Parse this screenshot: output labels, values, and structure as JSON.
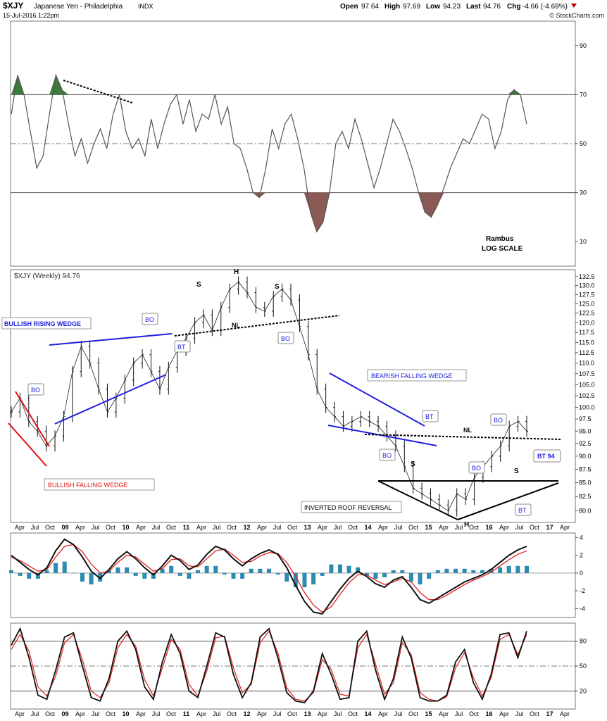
{
  "header": {
    "symbol": "$XJY",
    "name": "Japanese Yen - Philadelphia",
    "exchange": "INDX",
    "date": "15-Jul-2016 1:22pm",
    "stats_open_label": "Open",
    "stats_open": "97.64",
    "stats_high_label": "High",
    "stats_high": "97.69",
    "stats_low_label": "Low",
    "stats_low": "94.23",
    "stats_last_label": "Last",
    "stats_last": "94.76",
    "stats_chg_label": "Chg",
    "stats_chg": "-4.66 (-4.69%)",
    "watermark": "© StockCharts.com"
  },
  "chart_data": [
    {
      "type": "line",
      "panel": "rsi-top",
      "yticks": [
        90,
        70,
        50,
        30,
        10
      ],
      "ylim": [
        0,
        100
      ],
      "overbought": 70,
      "oversold": 30,
      "annotations": [
        "Rambus",
        "LOG SCALE"
      ],
      "series": [
        {
          "values": [
            62,
            78,
            70,
            55,
            40,
            45,
            62,
            78,
            72,
            58,
            45,
            52,
            42,
            50,
            56,
            48,
            62,
            70,
            55,
            48,
            52,
            45,
            60,
            48,
            58,
            66,
            70,
            58,
            68,
            55,
            62,
            60,
            70,
            58,
            65,
            50,
            48,
            40,
            30,
            28,
            40,
            56,
            48,
            58,
            62,
            52,
            40,
            22,
            14,
            18,
            30,
            50,
            55,
            48,
            60,
            52,
            42,
            32,
            40,
            50,
            60,
            55,
            48,
            40,
            30,
            22,
            20,
            25,
            32,
            40,
            46,
            52,
            50,
            56,
            62,
            60,
            48,
            55,
            68,
            72,
            70,
            58
          ]
        }
      ]
    },
    {
      "type": "line",
      "panel": "price",
      "title": "$XJY (Weekly) 94.76",
      "yscale": "log",
      "ylim": [
        78.5,
        133.5
      ],
      "yticks": [
        "132.5",
        "130.0",
        "127.5",
        "125.0",
        "122.5",
        "120.0",
        "117.5",
        "115.0",
        "112.5",
        "110.0",
        "107.5",
        "105.0",
        "102.5",
        "100.0",
        "97.5",
        "95.0",
        "92.5",
        "90.0",
        "87.5",
        "85.0",
        "82.5",
        "80.0"
      ],
      "x_labels": [
        "Apr",
        "Jul",
        "Oct",
        "09",
        "Apr",
        "Jul",
        "Oct",
        "10",
        "Apr",
        "Jul",
        "Oct",
        "11",
        "Apr",
        "Jul",
        "Oct",
        "12",
        "Apr",
        "Jul",
        "Oct",
        "13",
        "Apr",
        "Jul",
        "Oct",
        "14",
        "Apr",
        "Jul",
        "Oct",
        "15",
        "Apr",
        "Jul",
        "Oct",
        "16",
        "Apr",
        "Jul",
        "Oct",
        "17",
        "Apr"
      ],
      "series": [
        {
          "name": "$XJY",
          "values": [
            99,
            102,
            97,
            95,
            92,
            94,
            98,
            108,
            114,
            110,
            104,
            99,
            102,
            106,
            110,
            112,
            108,
            104,
            109,
            113,
            116,
            120,
            122,
            118,
            124,
            129,
            131,
            128,
            124,
            123,
            127,
            129,
            126,
            119,
            112,
            104,
            100,
            98,
            96,
            97,
            98,
            97,
            96,
            94,
            92,
            88,
            84,
            83,
            82,
            81,
            80,
            83,
            82,
            86,
            88,
            90,
            92,
            96,
            97,
            95
          ]
        }
      ],
      "annotations": {
        "pattern_labels": [
          "BULLISH RISING WEDGE",
          "BULLISH FALLING WEDGE",
          "BEARISH FALLING WEDGE",
          "INVERTED ROOF REVERSAL"
        ],
        "callouts": [
          "BO",
          "BO",
          "BT",
          "BO",
          "BO",
          "BT",
          "BO",
          "BO",
          "BT",
          "BT 94"
        ],
        "marks": [
          "S",
          "H",
          "S",
          "NL",
          "S",
          "H",
          "S",
          "NL"
        ]
      }
    },
    {
      "type": "line",
      "panel": "macd",
      "yticks": [
        4,
        2,
        0,
        -2,
        -4
      ],
      "ylim": [
        -5,
        4.5
      ],
      "series": [
        {
          "values": [
            2,
            1.2,
            0.4,
            -0.2,
            0.6,
            2.5,
            3.8,
            3.2,
            1.8,
            0.2,
            -0.6,
            0.4,
            1.6,
            2.4,
            1.6,
            0.6,
            -0.2,
            0.8,
            2,
            1.4,
            0.4,
            0.9,
            2.1,
            3,
            2.6,
            1.6,
            0.8,
            1.6,
            2.2,
            2.6,
            2.1,
            0.6,
            -1.4,
            -3.2,
            -4.4,
            -4.6,
            -3.2,
            -1.8,
            -0.6,
            0.2,
            -0.4,
            -1.2,
            -1.6,
            -0.8,
            -0.4,
            -1.6,
            -3,
            -3.4,
            -2.8,
            -2.2,
            -1.6,
            -1,
            -0.6,
            -0.2,
            0.4,
            1.2,
            2,
            2.6,
            3
          ]
        },
        {
          "values": [
            1.8,
            1.4,
            0.8,
            0.2,
            0.4,
            1.8,
            3,
            3.2,
            2.4,
            1,
            0,
            0.2,
            1.2,
            2,
            1.8,
            1,
            0.2,
            0.5,
            1.5,
            1.6,
            0.8,
            0.7,
            1.6,
            2.5,
            2.7,
            2,
            1.2,
            1.3,
            1.9,
            2.3,
            2.2,
            1.2,
            -0.4,
            -2.2,
            -3.6,
            -4.4,
            -3.8,
            -2.4,
            -1.1,
            -0.2,
            -0.2,
            -0.8,
            -1.3,
            -1,
            -0.6,
            -1,
            -2.2,
            -3,
            -3,
            -2.5,
            -1.9,
            -1.3,
            -0.8,
            -0.4,
            0.1,
            0.8,
            1.5,
            2.1,
            2.5
          ]
        }
      ]
    },
    {
      "type": "line",
      "panel": "stochastic",
      "yticks": [
        80,
        50,
        20
      ],
      "ylim": [
        0,
        100
      ],
      "series": [
        {
          "values": [
            75,
            95,
            60,
            15,
            10,
            45,
            85,
            90,
            50,
            12,
            8,
            35,
            80,
            92,
            70,
            25,
            10,
            55,
            88,
            65,
            20,
            12,
            50,
            90,
            85,
            40,
            12,
            30,
            85,
            95,
            60,
            18,
            8,
            6,
            20,
            65,
            40,
            10,
            12,
            80,
            92,
            45,
            10,
            35,
            85,
            60,
            12,
            8,
            8,
            15,
            55,
            70,
            30,
            10,
            40,
            88,
            90,
            60,
            92
          ]
        },
        {
          "values": [
            70,
            88,
            68,
            25,
            14,
            38,
            78,
            88,
            58,
            20,
            12,
            30,
            72,
            88,
            74,
            34,
            14,
            48,
            82,
            70,
            28,
            14,
            44,
            84,
            86,
            48,
            18,
            28,
            78,
            92,
            66,
            24,
            10,
            8,
            18,
            58,
            46,
            16,
            14,
            72,
            88,
            52,
            16,
            30,
            78,
            64,
            18,
            10,
            8,
            13,
            48,
            66,
            36,
            14,
            36,
            82,
            88,
            64,
            88
          ]
        }
      ]
    }
  ]
}
